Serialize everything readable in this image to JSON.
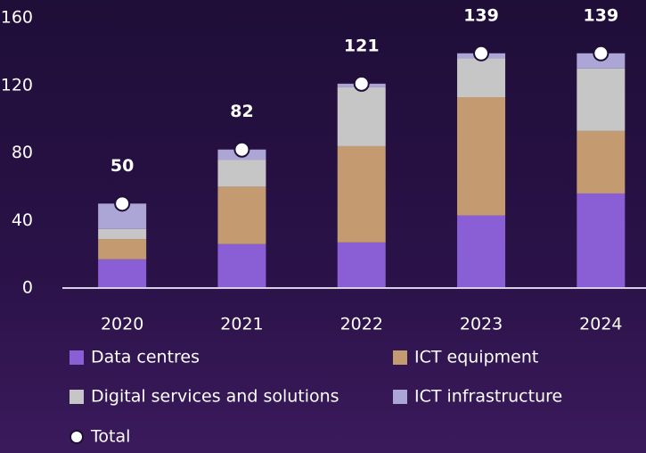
{
  "chart_data": {
    "type": "stacked_bar",
    "categories": [
      "2020",
      "2021",
      "2022",
      "2023",
      "2024"
    ],
    "series": [
      {
        "name": "Data centres",
        "color": "#8a5fd5",
        "values": [
          17,
          26,
          27,
          43,
          56
        ]
      },
      {
        "name": "ICT equipment",
        "color": "#c49b70",
        "values": [
          12,
          34,
          57,
          70,
          37
        ]
      },
      {
        "name": "Digital services and solutions",
        "color": "#c6c6c6",
        "values": [
          6,
          16,
          35,
          23,
          37
        ]
      },
      {
        "name": "ICT infrastructure",
        "color": "#aca6d6",
        "values": [
          15,
          6,
          2,
          3,
          9
        ]
      }
    ],
    "total": {
      "name": "Total",
      "values": [
        50,
        82,
        121,
        139,
        139
      ]
    },
    "ylim": [
      0,
      160
    ],
    "yticks": [
      0,
      40,
      80,
      120,
      160
    ],
    "grid": false
  }
}
